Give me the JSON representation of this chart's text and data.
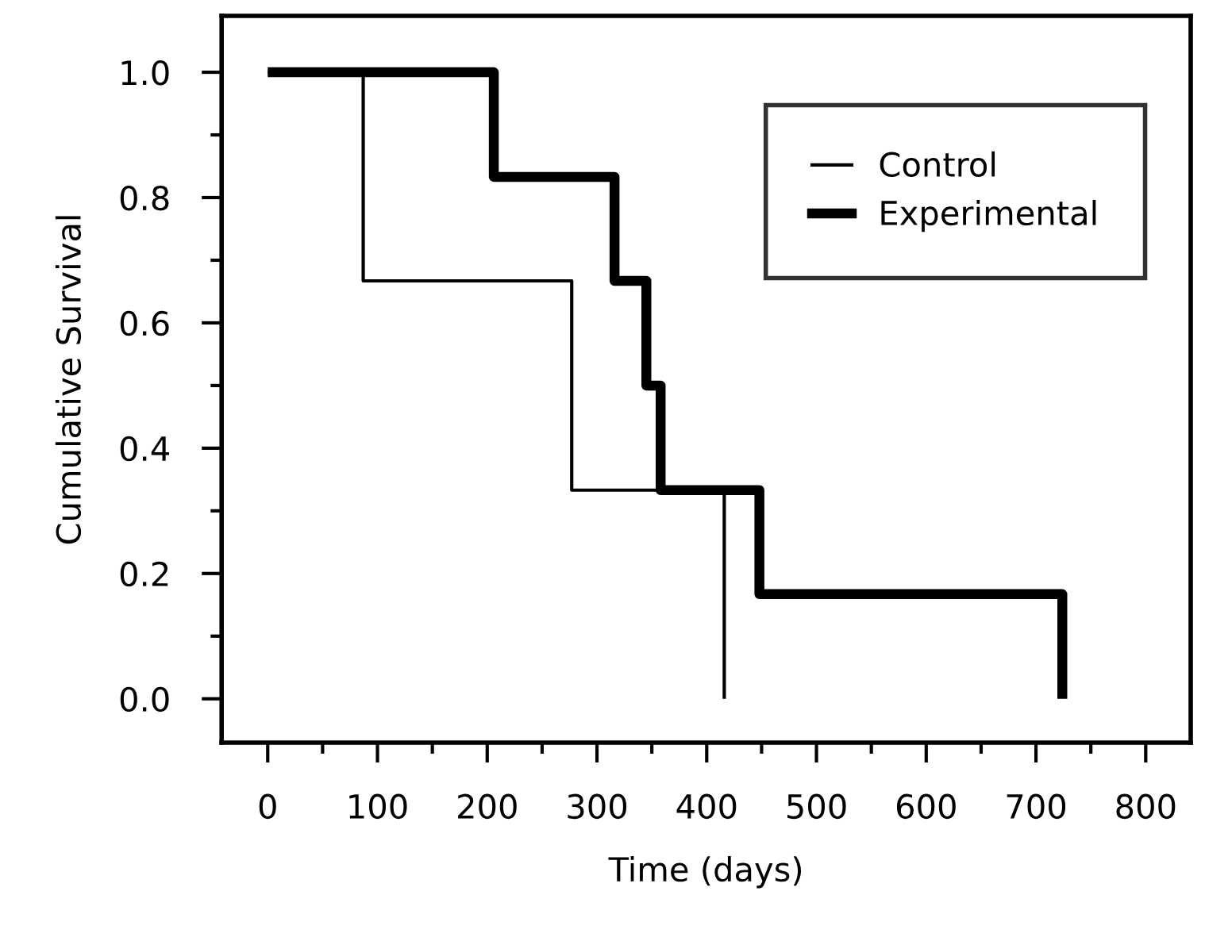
{
  "chart_data": {
    "type": "step",
    "xlabel": "Time (days)",
    "ylabel": "Cumulative Survival",
    "series": [
      {
        "name": "Control",
        "color": "#000000",
        "x": [
          0,
          87,
          277,
          416,
          416
        ],
        "values": [
          1.0,
          0.667,
          0.333,
          0.0,
          0.0
        ]
      },
      {
        "name": "Experimental",
        "color": "#000000",
        "x": [
          0,
          206,
          316,
          345,
          358,
          448,
          724,
          724
        ],
        "values": [
          1.0,
          0.833,
          0.667,
          0.5,
          0.333,
          0.167,
          0.0,
          0.0
        ]
      }
    ],
    "xlim": [
      -42,
      841
    ],
    "ylim": [
      -0.07,
      1.09
    ],
    "xticks": [
      0,
      {
        "value": 50,
        "label": null
      },
      100,
      {
        "value": 150,
        "label": null
      },
      200,
      {
        "value": 250,
        "label": null
      },
      300,
      {
        "value": 350,
        "label": null
      },
      400,
      {
        "value": 450,
        "label": null
      },
      500,
      {
        "value": 550,
        "label": null
      },
      600,
      {
        "value": 650,
        "label": null
      },
      700,
      {
        "value": 750,
        "label": null
      },
      800
    ],
    "yticks": [
      {
        "value": 0,
        "label": "0.0"
      },
      {
        "value": 0.1,
        "label": null
      },
      {
        "value": 0.2,
        "label": "0.2"
      },
      {
        "value": 0.3,
        "label": null
      },
      {
        "value": 0.4,
        "label": "0.4"
      },
      {
        "value": 0.5,
        "label": null
      },
      {
        "value": 0.6,
        "label": "0.6"
      },
      {
        "value": 0.7,
        "label": null
      },
      {
        "value": 0.8,
        "label": "0.8"
      },
      {
        "value": 0.9,
        "label": null
      },
      {
        "value": 1.0,
        "label": "1.0"
      }
    ],
    "legend": "top right",
    "grid": false
  }
}
